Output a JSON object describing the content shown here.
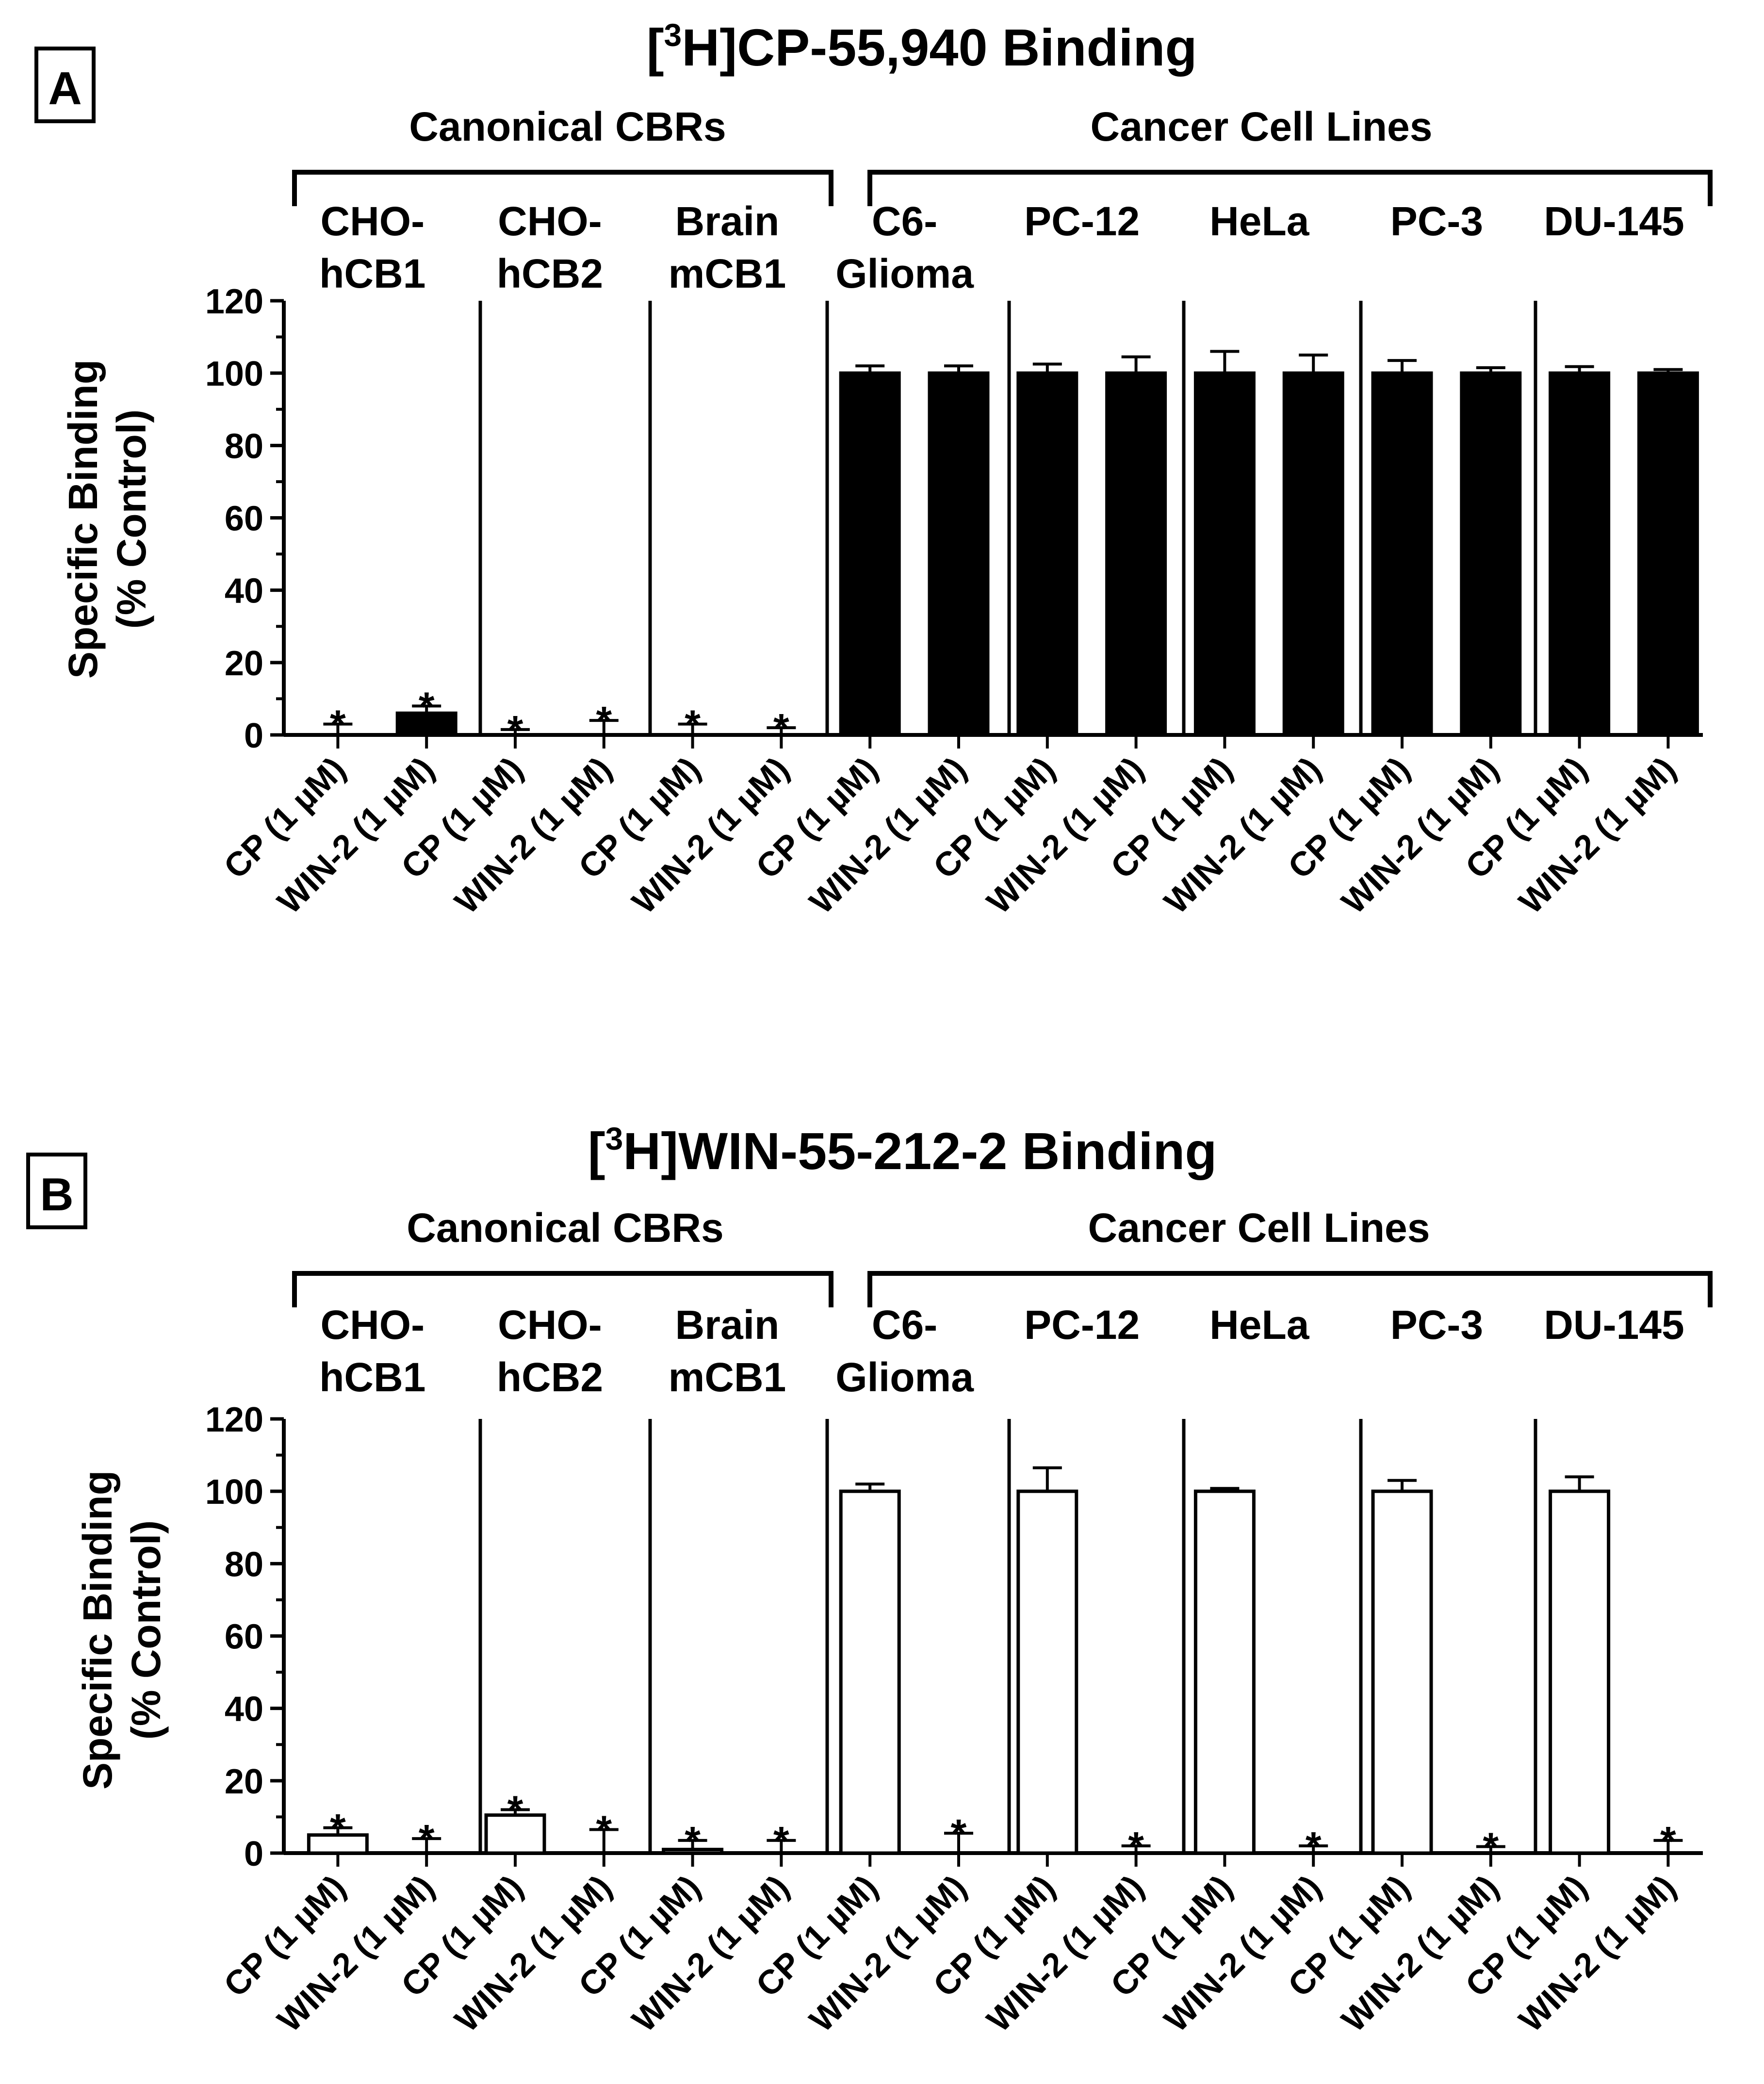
{
  "panels": [
    {
      "label": "A",
      "title_pre": "[",
      "title_sup": "3",
      "title_post": "H]CP-55,940 Binding",
      "bar_fill": "#000000",
      "groups": [
        "Canonical CBRs",
        "Cancer Cell Lines"
      ],
      "cell_lines": [
        [
          "CHO-",
          "hCB1"
        ],
        [
          "CHO-",
          "hCB2"
        ],
        [
          "Brain",
          "mCB1"
        ],
        [
          "C6-",
          "Glioma"
        ],
        [
          "PC-12"
        ],
        [
          "HeLa"
        ],
        [
          "PC-3"
        ],
        [
          "DU-145"
        ]
      ],
      "chart_data": {
        "type": "bar",
        "ylabel_line1": "Specific Binding",
        "ylabel_line2": "(% Control)",
        "ylim": [
          0,
          120
        ],
        "yticks": [
          0,
          20,
          40,
          60,
          80,
          100,
          120
        ],
        "categories": [
          "CP (1 µM)",
          "WIN-2 (1 µM)",
          "CP (1 µM)",
          "WIN-2 (1 µM)",
          "CP (1 µM)",
          "WIN-2 (1 µM)",
          "CP (1 µM)",
          "WIN-2 (1 µM)",
          "CP (1 µM)",
          "WIN-2 (1 µM)",
          "CP (1 µM)",
          "WIN-2 (1 µM)",
          "CP (1 µM)",
          "WIN-2 (1 µM)",
          "CP (1 µM)",
          "WIN-2 (1 µM)"
        ],
        "values": [
          0,
          6,
          0,
          0,
          0,
          0,
          100,
          100,
          100,
          100,
          100,
          100,
          100,
          100,
          100,
          100
        ],
        "errors": [
          3,
          2,
          1.5,
          4,
          3,
          2,
          2,
          2,
          2.5,
          4.5,
          6,
          5,
          3.5,
          1.5,
          1.8,
          1
        ],
        "significance": [
          "*",
          "*",
          "*",
          "*",
          "*",
          "*",
          "",
          "",
          "",
          "",
          "",
          "",
          "",
          "",
          "",
          ""
        ]
      }
    },
    {
      "label": "B",
      "title_pre": "[",
      "title_sup": "3",
      "title_post": "H]WIN-55-212-2 Binding",
      "bar_fill": "#ffffff",
      "groups": [
        "Canonical CBRs",
        "Cancer Cell Lines"
      ],
      "cell_lines": [
        [
          "CHO-",
          "hCB1"
        ],
        [
          "CHO-",
          "hCB2"
        ],
        [
          "Brain",
          "mCB1"
        ],
        [
          "C6-",
          "Glioma"
        ],
        [
          "PC-12"
        ],
        [
          "HeLa"
        ],
        [
          "PC-3"
        ],
        [
          "DU-145"
        ]
      ],
      "chart_data": {
        "type": "bar",
        "ylabel_line1": "Specific Binding",
        "ylabel_line2": "(% Control)",
        "ylim": [
          0,
          120
        ],
        "yticks": [
          0,
          20,
          40,
          60,
          80,
          100,
          120
        ],
        "categories": [
          "CP (1 µM)",
          "WIN-2 (1 µM)",
          "CP (1 µM)",
          "WIN-2 (1 µM)",
          "CP (1 µM)",
          "WIN-2 (1 µM)",
          "CP (1 µM)",
          "WIN-2 (1 µM)",
          "CP (1 µM)",
          "WIN-2 (1 µM)",
          "CP (1 µM)",
          "WIN-2 (1 µM)",
          "CP (1 µM)",
          "WIN-2 (1 µM)",
          "CP (1 µM)",
          "WIN-2 (1 µM)"
        ],
        "values": [
          5,
          0,
          10.5,
          0,
          1,
          0,
          100,
          0,
          100,
          0,
          100,
          0,
          100,
          0,
          100,
          0
        ],
        "errors": [
          2,
          4,
          1.5,
          6.5,
          2.5,
          3.5,
          2,
          5.5,
          6.5,
          2,
          0.8,
          2,
          3,
          1.8,
          4,
          3.5
        ],
        "significance": [
          "*",
          "*",
          "*",
          "*",
          "*",
          "*",
          "",
          "*",
          "",
          "*",
          "",
          "*",
          "",
          "*",
          "",
          "*"
        ]
      }
    }
  ]
}
